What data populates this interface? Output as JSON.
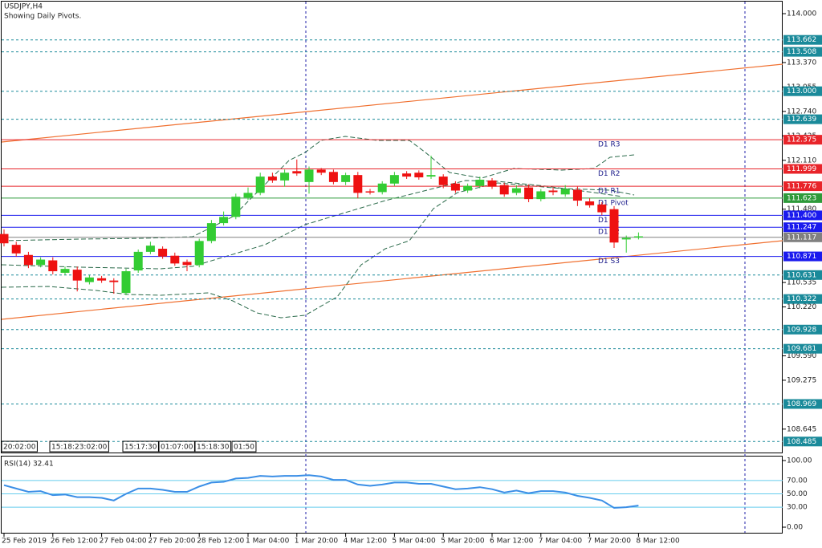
{
  "chart_data": {
    "type": "candlestick",
    "title": "USDJPY,H4",
    "subtitle": "Showing Daily Pivots.",
    "up_color": "#33cc33",
    "down_color": "#ee1111",
    "ylim": [
      108.333,
      114.176
    ],
    "yticks": [
      {
        "value": 114,
        "label": "114.000"
      },
      {
        "value": 113.37,
        "label": "113.370"
      },
      {
        "value": 113.055,
        "label": "113.055"
      },
      {
        "value": 112.74,
        "label": "112.740"
      },
      {
        "value": 112.425,
        "label": "112.425"
      },
      {
        "value": 112.11,
        "label": "112.110"
      },
      {
        "value": 111.48,
        "label": "111.480"
      },
      {
        "value": 110.535,
        "label": "110.535"
      },
      {
        "value": 110.22,
        "label": "110.220"
      },
      {
        "value": 109.59,
        "label": "109.590"
      },
      {
        "value": 109.275,
        "label": "109.275"
      },
      {
        "value": 108.645,
        "label": "108.645"
      }
    ],
    "levels": [
      {
        "value": 113.662,
        "label": "113.662",
        "color": "#1a8a9a",
        "style": "dashed"
      },
      {
        "value": 113.508,
        "label": "113.508",
        "color": "#1a8a9a",
        "style": "dashed"
      },
      {
        "value": 113,
        "label": "113.000",
        "color": "#1a8a9a",
        "style": "dashed"
      },
      {
        "value": 112.639,
        "label": "112.639",
        "color": "#1a8a9a",
        "style": "dashed"
      },
      {
        "value": 112.375,
        "label": "112.375",
        "color": "#e8242a",
        "style": "solid",
        "pivot": "D1 R3"
      },
      {
        "value": 111.999,
        "label": "111.999",
        "color": "#e8242a",
        "style": "solid",
        "pivot": "D1 R2"
      },
      {
        "value": 111.776,
        "label": "111.776",
        "color": "#e8242a",
        "style": "solid",
        "pivot": "D1 R1"
      },
      {
        "value": 111.623,
        "label": "111.623",
        "color": "#2e9a3a",
        "style": "solid",
        "pivot": "D1 Pivot"
      },
      {
        "value": 111.4,
        "label": "111.400",
        "color": "#1a1aee",
        "style": "solid",
        "pivot": "D1 S1"
      },
      {
        "value": 111.247,
        "label": "111.247",
        "color": "#1a1aee",
        "style": "solid",
        "pivot": "D1 S2"
      },
      {
        "value": 111.117,
        "label": "111.117",
        "color": "#808080",
        "style": "solid"
      },
      {
        "value": 110.871,
        "label": "110.871",
        "color": "#1a1aee",
        "style": "solid",
        "pivot": "D1 S3"
      },
      {
        "value": 110.631,
        "label": "110.631",
        "color": "#1a8a9a",
        "style": "dashed"
      },
      {
        "value": 110.322,
        "label": "110.322",
        "color": "#1a8a9a",
        "style": "dashed"
      },
      {
        "value": 109.928,
        "label": "109.928",
        "color": "#1a8a9a",
        "style": "dashed"
      },
      {
        "value": 109.681,
        "label": "109.681",
        "color": "#1a8a9a",
        "style": "dashed"
      },
      {
        "value": 108.969,
        "label": "108.969",
        "color": "#1a8a9a",
        "style": "dashed"
      },
      {
        "value": 108.485,
        "label": "108.485",
        "color": "#1a8a9a",
        "style": "dashed"
      }
    ],
    "time_markers": [
      "20:02:00",
      "15:18:23:02:00",
      "15:17:30",
      "01:07:00",
      "15:18:30",
      "01:50"
    ],
    "categories": [
      "25 Feb 2019",
      null,
      null,
      null,
      "26 Feb 12:00",
      null,
      null,
      null,
      "27 Feb 04:00",
      null,
      null,
      null,
      "27 Feb 20:00",
      null,
      null,
      null,
      "28 Feb 12:00",
      null,
      null,
      null,
      "1 Mar 04:00",
      null,
      null,
      null,
      "1 Mar 20:00",
      null,
      null,
      null,
      "4 Mar 12:00",
      null,
      null,
      null,
      "5 Mar 04:00",
      null,
      null,
      null,
      "5 Mar 20:00",
      null,
      null,
      null,
      "6 Mar 12:00",
      null,
      null,
      null,
      "7 Mar 04:00",
      null,
      null,
      null,
      "7 Mar 20:00",
      null,
      null,
      null,
      "8 Mar 12:00"
    ],
    "open": [
      111.16,
      111.02,
      110.89,
      110.76,
      110.82,
      110.66,
      110.7,
      110.54,
      110.59,
      110.56,
      110.4,
      110.69,
      110.93,
      110.97,
      110.88,
      110.8,
      110.76,
      111.07,
      111.3,
      111.38,
      111.63,
      111.69,
      111.9,
      111.85,
      111.97,
      111.83,
      111.99,
      111.96,
      111.83,
      111.92,
      111.71,
      111.7,
      111.81,
      111.94,
      111.95,
      111.9,
      111.9,
      111.81,
      111.72,
      111.78,
      111.85,
      111.79,
      111.69,
      111.76,
      111.61,
      111.72,
      111.67,
      111.73,
      111.58,
      111.54,
      111.48,
      111.09,
      111.12
    ],
    "high": [
      111.22,
      111.06,
      110.93,
      110.86,
      110.86,
      110.74,
      110.74,
      110.63,
      110.62,
      110.59,
      110.71,
      110.96,
      111.06,
      111.0,
      110.92,
      110.83,
      111.1,
      111.34,
      111.45,
      111.68,
      111.76,
      111.95,
      111.95,
      111.99,
      112.12,
      112.03,
      112.01,
      111.99,
      111.95,
      111.96,
      111.74,
      111.84,
      111.96,
      111.97,
      111.98,
      112.17,
      111.93,
      111.84,
      111.81,
      111.9,
      111.88,
      111.82,
      111.79,
      111.8,
      111.74,
      111.76,
      111.79,
      111.77,
      111.62,
      111.57,
      111.52,
      111.14,
      111.18
    ],
    "low": [
      111.0,
      110.87,
      110.72,
      110.73,
      110.64,
      110.63,
      110.42,
      110.51,
      110.53,
      110.39,
      110.37,
      110.66,
      110.9,
      110.84,
      110.75,
      110.68,
      110.73,
      111.04,
      111.27,
      111.35,
      111.6,
      111.66,
      111.82,
      111.77,
      111.91,
      111.68,
      111.92,
      111.8,
      111.79,
      111.62,
      111.67,
      111.67,
      111.78,
      111.87,
      111.86,
      111.87,
      111.75,
      111.69,
      111.69,
      111.75,
      111.74,
      111.64,
      111.66,
      111.57,
      111.58,
      111.66,
      111.64,
      111.52,
      111.5,
      111.4,
      110.98,
      110.92,
      111.09
    ],
    "close": [
      111.04,
      110.91,
      110.76,
      110.83,
      110.68,
      110.71,
      110.56,
      110.6,
      110.56,
      110.54,
      110.68,
      110.93,
      111.01,
      110.87,
      110.78,
      110.76,
      111.07,
      111.3,
      111.38,
      111.64,
      111.69,
      111.9,
      111.85,
      111.95,
      111.94,
      111.99,
      111.95,
      111.83,
      111.92,
      111.69,
      111.7,
      111.81,
      111.92,
      111.9,
      111.89,
      111.92,
      111.79,
      111.72,
      111.78,
      111.86,
      111.77,
      111.67,
      111.75,
      111.61,
      111.71,
      111.7,
      111.74,
      111.59,
      111.53,
      111.44,
      111.05,
      111.11,
      111.13
    ],
    "rsi": {
      "label": "RSI(14) 32.41",
      "color": "#3a8ee6",
      "level_color": "#66ccee",
      "ylim": [
        -9.6,
        107.2
      ],
      "yticks": [
        {
          "value": 100,
          "label": "100.00"
        },
        {
          "value": 70,
          "label": "70.00"
        },
        {
          "value": 50,
          "label": "50.00"
        },
        {
          "value": 30,
          "label": "30.00"
        },
        {
          "value": 0,
          "label": "0.00"
        }
      ],
      "values": [
        63,
        58,
        53,
        54,
        48,
        49,
        45,
        45,
        44,
        40,
        50,
        58,
        58,
        56,
        53,
        53,
        61,
        67,
        68,
        73,
        74,
        77,
        76,
        77,
        77,
        78,
        76,
        71,
        71,
        64,
        62,
        64,
        67,
        67,
        65,
        65,
        61,
        57,
        58,
        60,
        57,
        52,
        55,
        51,
        54,
        54,
        52,
        47,
        44,
        40,
        29,
        30,
        32.41
      ]
    }
  }
}
